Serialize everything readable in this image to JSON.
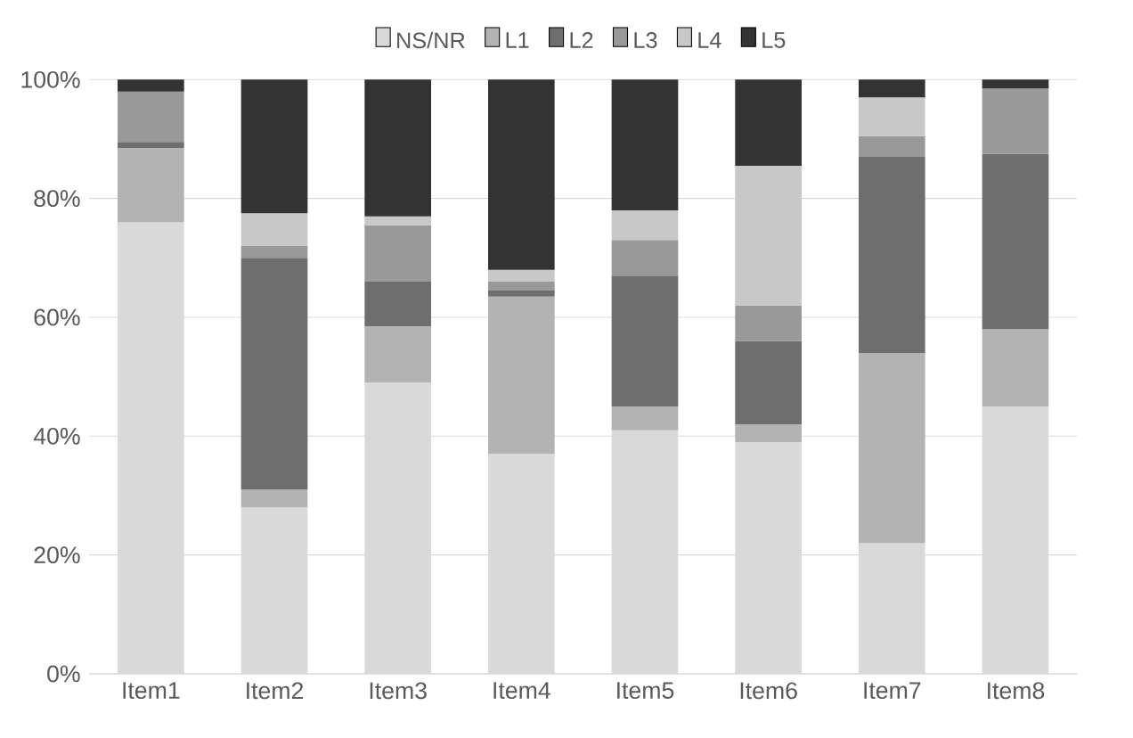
{
  "chart_data": {
    "type": "bar",
    "stacked": true,
    "categories": [
      "Item1",
      "Item2",
      "Item3",
      "Item4",
      "Item5",
      "Item6",
      "Item7",
      "Item8"
    ],
    "series": [
      {
        "name": "NS/NR",
        "color": "#d9d9d9",
        "values": [
          76,
          28,
          49,
          37,
          41,
          39,
          22,
          45
        ]
      },
      {
        "name": "L1",
        "color": "#b3b3b3",
        "values": [
          12.5,
          3,
          9.5,
          26.5,
          4,
          3,
          32,
          13
        ]
      },
      {
        "name": "L2",
        "color": "#6e6e6e",
        "values": [
          1,
          39,
          7.5,
          1,
          22,
          14,
          33,
          29.5
        ]
      },
      {
        "name": "L3",
        "color": "#999999",
        "values": [
          8.5,
          2,
          9.5,
          1.5,
          6,
          6,
          3.5,
          11
        ]
      },
      {
        "name": "L4",
        "color": "#c8c8c8",
        "values": [
          null,
          5.5,
          1.5,
          2,
          5,
          23.5,
          6.5,
          null
        ]
      },
      {
        "name": "L5",
        "color": "#333333",
        "values": [
          2,
          22.5,
          23,
          32,
          22,
          14.5,
          3,
          1.5
        ]
      }
    ],
    "ylim": [
      0,
      100
    ],
    "yticks": [
      {
        "value": 0,
        "label": "0%"
      },
      {
        "value": 20,
        "label": "20%"
      },
      {
        "value": 40,
        "label": "40%"
      },
      {
        "value": 60,
        "label": "60%"
      },
      {
        "value": 80,
        "label": "80%"
      },
      {
        "value": 100,
        "label": "100%"
      }
    ],
    "grid": "y",
    "legend": "top"
  }
}
